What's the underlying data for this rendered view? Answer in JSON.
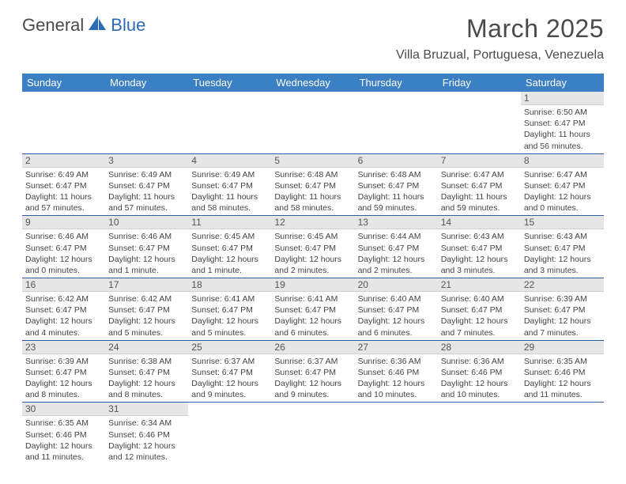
{
  "brand": {
    "text1": "General",
    "text2": "Blue"
  },
  "title": "March 2025",
  "location": "Villa Bruzual, Portuguesa, Venezuela",
  "colors": {
    "header_bg": "#3b7fc4",
    "header_text": "#ffffff",
    "daynum_bg": "#e6e6e6",
    "row_border": "#2d5f9c",
    "logo_gray": "#4a4a4a",
    "logo_blue": "#2d6bb4"
  },
  "weekdays": [
    "Sunday",
    "Monday",
    "Tuesday",
    "Wednesday",
    "Thursday",
    "Friday",
    "Saturday"
  ],
  "grid": [
    [
      {
        "n": "",
        "lines": []
      },
      {
        "n": "",
        "lines": []
      },
      {
        "n": "",
        "lines": []
      },
      {
        "n": "",
        "lines": []
      },
      {
        "n": "",
        "lines": []
      },
      {
        "n": "",
        "lines": []
      },
      {
        "n": "1",
        "lines": [
          "Sunrise: 6:50 AM",
          "Sunset: 6:47 PM",
          "Daylight: 11 hours and 56 minutes."
        ]
      }
    ],
    [
      {
        "n": "2",
        "lines": [
          "Sunrise: 6:49 AM",
          "Sunset: 6:47 PM",
          "Daylight: 11 hours and 57 minutes."
        ]
      },
      {
        "n": "3",
        "lines": [
          "Sunrise: 6:49 AM",
          "Sunset: 6:47 PM",
          "Daylight: 11 hours and 57 minutes."
        ]
      },
      {
        "n": "4",
        "lines": [
          "Sunrise: 6:49 AM",
          "Sunset: 6:47 PM",
          "Daylight: 11 hours and 58 minutes."
        ]
      },
      {
        "n": "5",
        "lines": [
          "Sunrise: 6:48 AM",
          "Sunset: 6:47 PM",
          "Daylight: 11 hours and 58 minutes."
        ]
      },
      {
        "n": "6",
        "lines": [
          "Sunrise: 6:48 AM",
          "Sunset: 6:47 PM",
          "Daylight: 11 hours and 59 minutes."
        ]
      },
      {
        "n": "7",
        "lines": [
          "Sunrise: 6:47 AM",
          "Sunset: 6:47 PM",
          "Daylight: 11 hours and 59 minutes."
        ]
      },
      {
        "n": "8",
        "lines": [
          "Sunrise: 6:47 AM",
          "Sunset: 6:47 PM",
          "Daylight: 12 hours and 0 minutes."
        ]
      }
    ],
    [
      {
        "n": "9",
        "lines": [
          "Sunrise: 6:46 AM",
          "Sunset: 6:47 PM",
          "Daylight: 12 hours and 0 minutes."
        ]
      },
      {
        "n": "10",
        "lines": [
          "Sunrise: 6:46 AM",
          "Sunset: 6:47 PM",
          "Daylight: 12 hours and 1 minute."
        ]
      },
      {
        "n": "11",
        "lines": [
          "Sunrise: 6:45 AM",
          "Sunset: 6:47 PM",
          "Daylight: 12 hours and 1 minute."
        ]
      },
      {
        "n": "12",
        "lines": [
          "Sunrise: 6:45 AM",
          "Sunset: 6:47 PM",
          "Daylight: 12 hours and 2 minutes."
        ]
      },
      {
        "n": "13",
        "lines": [
          "Sunrise: 6:44 AM",
          "Sunset: 6:47 PM",
          "Daylight: 12 hours and 2 minutes."
        ]
      },
      {
        "n": "14",
        "lines": [
          "Sunrise: 6:43 AM",
          "Sunset: 6:47 PM",
          "Daylight: 12 hours and 3 minutes."
        ]
      },
      {
        "n": "15",
        "lines": [
          "Sunrise: 6:43 AM",
          "Sunset: 6:47 PM",
          "Daylight: 12 hours and 3 minutes."
        ]
      }
    ],
    [
      {
        "n": "16",
        "lines": [
          "Sunrise: 6:42 AM",
          "Sunset: 6:47 PM",
          "Daylight: 12 hours and 4 minutes."
        ]
      },
      {
        "n": "17",
        "lines": [
          "Sunrise: 6:42 AM",
          "Sunset: 6:47 PM",
          "Daylight: 12 hours and 5 minutes."
        ]
      },
      {
        "n": "18",
        "lines": [
          "Sunrise: 6:41 AM",
          "Sunset: 6:47 PM",
          "Daylight: 12 hours and 5 minutes."
        ]
      },
      {
        "n": "19",
        "lines": [
          "Sunrise: 6:41 AM",
          "Sunset: 6:47 PM",
          "Daylight: 12 hours and 6 minutes."
        ]
      },
      {
        "n": "20",
        "lines": [
          "Sunrise: 6:40 AM",
          "Sunset: 6:47 PM",
          "Daylight: 12 hours and 6 minutes."
        ]
      },
      {
        "n": "21",
        "lines": [
          "Sunrise: 6:40 AM",
          "Sunset: 6:47 PM",
          "Daylight: 12 hours and 7 minutes."
        ]
      },
      {
        "n": "22",
        "lines": [
          "Sunrise: 6:39 AM",
          "Sunset: 6:47 PM",
          "Daylight: 12 hours and 7 minutes."
        ]
      }
    ],
    [
      {
        "n": "23",
        "lines": [
          "Sunrise: 6:39 AM",
          "Sunset: 6:47 PM",
          "Daylight: 12 hours and 8 minutes."
        ]
      },
      {
        "n": "24",
        "lines": [
          "Sunrise: 6:38 AM",
          "Sunset: 6:47 PM",
          "Daylight: 12 hours and 8 minutes."
        ]
      },
      {
        "n": "25",
        "lines": [
          "Sunrise: 6:37 AM",
          "Sunset: 6:47 PM",
          "Daylight: 12 hours and 9 minutes."
        ]
      },
      {
        "n": "26",
        "lines": [
          "Sunrise: 6:37 AM",
          "Sunset: 6:47 PM",
          "Daylight: 12 hours and 9 minutes."
        ]
      },
      {
        "n": "27",
        "lines": [
          "Sunrise: 6:36 AM",
          "Sunset: 6:46 PM",
          "Daylight: 12 hours and 10 minutes."
        ]
      },
      {
        "n": "28",
        "lines": [
          "Sunrise: 6:36 AM",
          "Sunset: 6:46 PM",
          "Daylight: 12 hours and 10 minutes."
        ]
      },
      {
        "n": "29",
        "lines": [
          "Sunrise: 6:35 AM",
          "Sunset: 6:46 PM",
          "Daylight: 12 hours and 11 minutes."
        ]
      }
    ],
    [
      {
        "n": "30",
        "lines": [
          "Sunrise: 6:35 AM",
          "Sunset: 6:46 PM",
          "Daylight: 12 hours and 11 minutes."
        ]
      },
      {
        "n": "31",
        "lines": [
          "Sunrise: 6:34 AM",
          "Sunset: 6:46 PM",
          "Daylight: 12 hours and 12 minutes."
        ]
      },
      {
        "n": "",
        "lines": []
      },
      {
        "n": "",
        "lines": []
      },
      {
        "n": "",
        "lines": []
      },
      {
        "n": "",
        "lines": []
      },
      {
        "n": "",
        "lines": []
      }
    ]
  ]
}
